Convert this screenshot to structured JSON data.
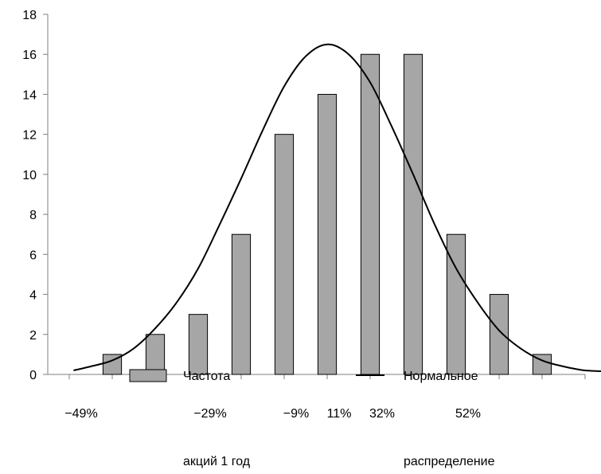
{
  "chart_data": {
    "type": "bar",
    "title": "",
    "xlabel": "",
    "ylabel": "",
    "ylim": [
      0,
      18
    ],
    "yticks": [
      0,
      2,
      4,
      6,
      8,
      10,
      12,
      14,
      16,
      18
    ],
    "x_tick_labels": [
      "−49%",
      "−29%",
      "−9%",
      "11%",
      "32%",
      "52%"
    ],
    "grid": false,
    "legend_position": "bottom",
    "series": [
      {
        "name": "Частота акций 1 год",
        "name_lines": [
          "Частота",
          "акций 1 год"
        ],
        "type": "bar",
        "color": "#a6a6a6",
        "values": [
          1,
          2,
          3,
          7,
          12,
          14,
          16,
          16,
          7,
          4,
          1
        ]
      },
      {
        "name": "Нормальное распределение",
        "name_lines": [
          "Нормальное",
          "распределение"
        ],
        "type": "line",
        "color": "#000000",
        "x": [
          -0.9,
          -0.5,
          0,
          0.5,
          1,
          1.5,
          2,
          2.5,
          3,
          3.5,
          4,
          4.5,
          5,
          5.5,
          6,
          6.5,
          7,
          7.5,
          8,
          8.5,
          9,
          9.5,
          10,
          10.5,
          11,
          11.6
        ],
        "values": [
          0.2,
          0.4,
          0.7,
          1.3,
          2.3,
          3.6,
          5.3,
          7.5,
          9.8,
          12.2,
          14.4,
          15.9,
          16.5,
          16.0,
          14.6,
          12.4,
          10.0,
          7.5,
          5.3,
          3.6,
          2.2,
          1.3,
          0.7,
          0.4,
          0.2,
          0.15
        ]
      }
    ]
  }
}
